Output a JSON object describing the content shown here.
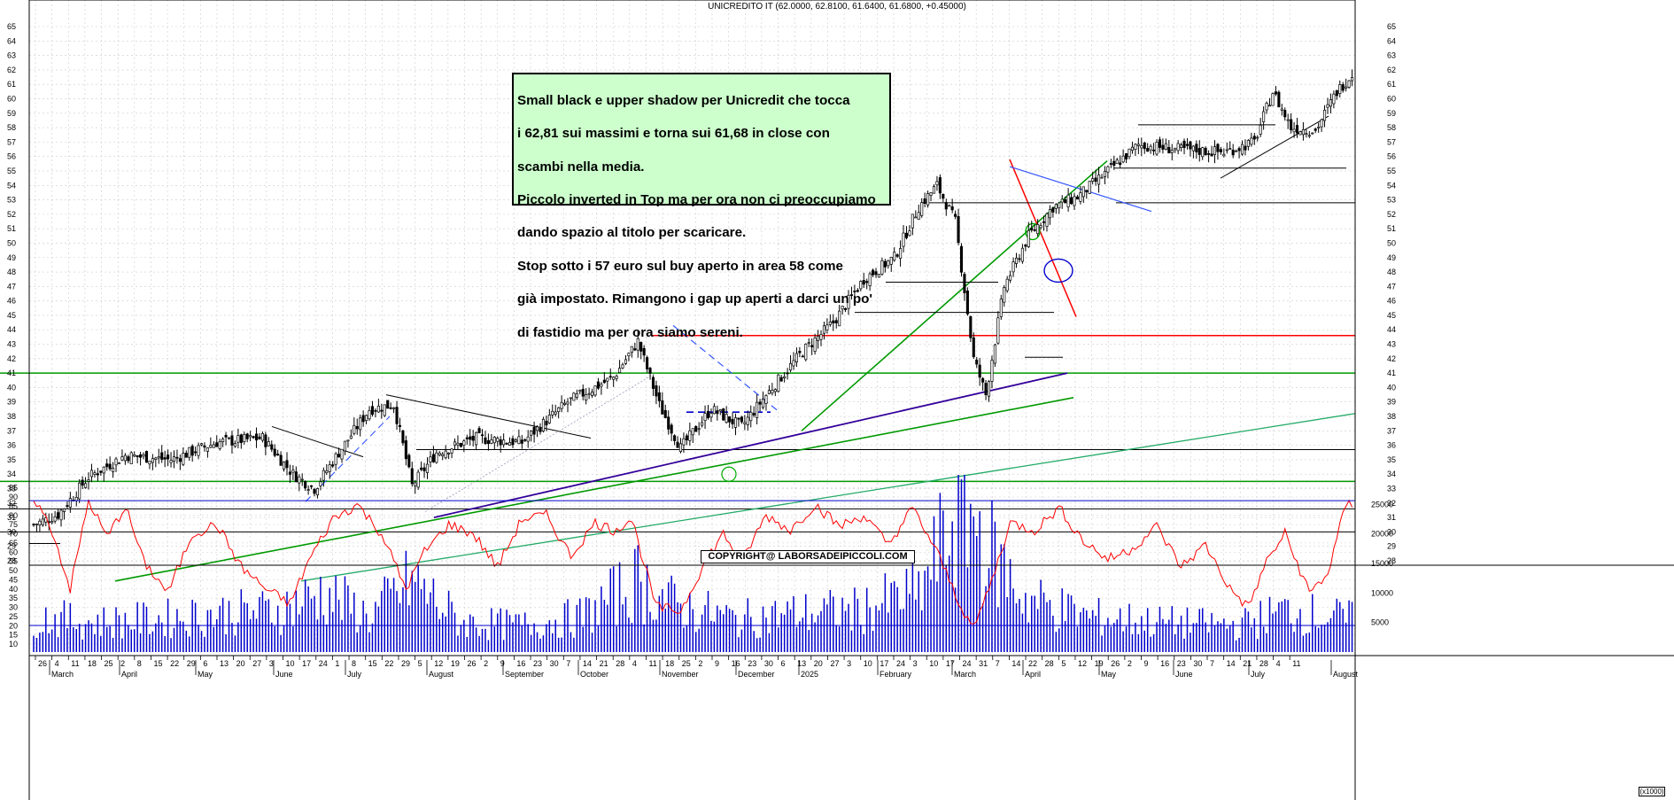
{
  "chart_data": {
    "type": "candlestick",
    "title": "UNICREDITO IT (62.0000, 62.8100, 61.6400, 61.6800, +0.45000)",
    "price_axis": {
      "ylim": [
        28,
        65
      ],
      "ticks": [
        28,
        29,
        30,
        31,
        32,
        33,
        34,
        35,
        36,
        37,
        38,
        39,
        40,
        41,
        42,
        43,
        44,
        45,
        46,
        47,
        48,
        49,
        50,
        51,
        52,
        53,
        54,
        55,
        56,
        57,
        58,
        59,
        60,
        61,
        62,
        63,
        64,
        65
      ]
    },
    "oscillator_axis": {
      "ylim": [
        10,
        95
      ],
      "ticks": [
        10,
        15,
        20,
        25,
        30,
        35,
        40,
        45,
        50,
        55,
        60,
        65,
        70,
        75,
        80,
        85,
        90,
        95
      ],
      "overbought_line": 88
    },
    "volume_axis": {
      "ylim": [
        0,
        30000
      ],
      "ticks": [
        5000,
        10000,
        15000,
        20000,
        25000
      ],
      "unit_label": "(x1000)"
    },
    "x_day_ticks": [
      "26",
      "4",
      "11",
      "18",
      "25",
      "2",
      "8",
      "15",
      "22",
      "29",
      "6",
      "13",
      "20",
      "27",
      "3",
      "10",
      "17",
      "24",
      "1",
      "8",
      "15",
      "22",
      "29",
      "5",
      "12",
      "19",
      "26",
      "2",
      "9",
      "16",
      "23",
      "30",
      "7",
      "14",
      "21",
      "28",
      "4",
      "11",
      "18",
      "25",
      "2",
      "9",
      "16",
      "23",
      "30",
      "6",
      "13",
      "20",
      "27",
      "3",
      "10",
      "17",
      "24",
      "3",
      "10",
      "17",
      "24",
      "31",
      "7",
      "14",
      "22",
      "28",
      "5",
      "12",
      "19",
      "26",
      "2",
      "9",
      "16",
      "23",
      "30",
      "7",
      "14",
      "21",
      "28",
      "4",
      "11"
    ],
    "x_month_labels": [
      "March",
      "April",
      "May",
      "June",
      "July",
      "August",
      "September",
      "October",
      "November",
      "December",
      "2025",
      "February",
      "March",
      "April",
      "May",
      "June",
      "July",
      "August"
    ],
    "close_anchors": [
      [
        0,
        30.5
      ],
      [
        8,
        31.2
      ],
      [
        18,
        33.8
      ],
      [
        30,
        35.3
      ],
      [
        45,
        35.0
      ],
      [
        60,
        36.2
      ],
      [
        75,
        36.5
      ],
      [
        85,
        34.0
      ],
      [
        92,
        33.0
      ],
      [
        100,
        35.5
      ],
      [
        110,
        38.5
      ],
      [
        118,
        38.8
      ],
      [
        124,
        33.2
      ],
      [
        132,
        35.5
      ],
      [
        145,
        36.5
      ],
      [
        160,
        36.2
      ],
      [
        175,
        39.0
      ],
      [
        190,
        40.7
      ],
      [
        198,
        43.2
      ],
      [
        205,
        38.8
      ],
      [
        212,
        35.8
      ],
      [
        222,
        38.5
      ],
      [
        232,
        37.3
      ],
      [
        242,
        40.0
      ],
      [
        252,
        42.5
      ],
      [
        262,
        44.5
      ],
      [
        272,
        47.5
      ],
      [
        282,
        49.0
      ],
      [
        290,
        52.5
      ],
      [
        296,
        54.0
      ],
      [
        302,
        51.5
      ],
      [
        308,
        42.0
      ],
      [
        312,
        39.5
      ],
      [
        318,
        47.0
      ],
      [
        326,
        50.5
      ],
      [
        334,
        52.5
      ],
      [
        342,
        53.2
      ],
      [
        352,
        55.0
      ],
      [
        362,
        56.8
      ],
      [
        375,
        56.5
      ],
      [
        390,
        56.3
      ],
      [
        400,
        57.0
      ],
      [
        406,
        60.5
      ],
      [
        412,
        58.0
      ],
      [
        420,
        57.8
      ],
      [
        427,
        60.5
      ],
      [
        432,
        61.7
      ]
    ],
    "volume_anchors": [
      [
        0,
        6000
      ],
      [
        20,
        5000
      ],
      [
        40,
        5500
      ],
      [
        60,
        6500
      ],
      [
        80,
        7000
      ],
      [
        95,
        10000
      ],
      [
        110,
        6000
      ],
      [
        124,
        12000
      ],
      [
        140,
        5000
      ],
      [
        160,
        4500
      ],
      [
        180,
        6000
      ],
      [
        198,
        12000
      ],
      [
        210,
        8000
      ],
      [
        230,
        5500
      ],
      [
        250,
        6500
      ],
      [
        270,
        7000
      ],
      [
        290,
        10000
      ],
      [
        305,
        26000
      ],
      [
        312,
        18000
      ],
      [
        325,
        9000
      ],
      [
        345,
        6000
      ],
      [
        370,
        5000
      ],
      [
        395,
        4500
      ],
      [
        410,
        7000
      ],
      [
        432,
        5500
      ]
    ],
    "oscillator_anchors": [
      [
        0,
        90
      ],
      [
        6,
        72
      ],
      [
        12,
        40
      ],
      [
        18,
        88
      ],
      [
        24,
        68
      ],
      [
        30,
        85
      ],
      [
        36,
        55
      ],
      [
        44,
        38
      ],
      [
        52,
        70
      ],
      [
        60,
        75
      ],
      [
        68,
        52
      ],
      [
        76,
        40
      ],
      [
        84,
        32
      ],
      [
        90,
        55
      ],
      [
        98,
        78
      ],
      [
        106,
        86
      ],
      [
        114,
        70
      ],
      [
        122,
        40
      ],
      [
        128,
        60
      ],
      [
        136,
        75
      ],
      [
        144,
        70
      ],
      [
        152,
        52
      ],
      [
        160,
        78
      ],
      [
        168,
        80
      ],
      [
        176,
        58
      ],
      [
        184,
        76
      ],
      [
        190,
        72
      ],
      [
        196,
        78
      ],
      [
        204,
        30
      ],
      [
        212,
        28
      ],
      [
        220,
        55
      ],
      [
        226,
        70
      ],
      [
        232,
        55
      ],
      [
        240,
        80
      ],
      [
        248,
        72
      ],
      [
        256,
        86
      ],
      [
        264,
        74
      ],
      [
        272,
        80
      ],
      [
        280,
        64
      ],
      [
        288,
        84
      ],
      [
        296,
        60
      ],
      [
        304,
        30
      ],
      [
        308,
        18
      ],
      [
        314,
        45
      ],
      [
        320,
        76
      ],
      [
        328,
        72
      ],
      [
        336,
        84
      ],
      [
        344,
        66
      ],
      [
        352,
        56
      ],
      [
        360,
        62
      ],
      [
        368,
        74
      ],
      [
        376,
        52
      ],
      [
        384,
        64
      ],
      [
        392,
        40
      ],
      [
        398,
        30
      ],
      [
        404,
        55
      ],
      [
        410,
        70
      ],
      [
        418,
        38
      ],
      [
        424,
        48
      ],
      [
        430,
        86
      ],
      [
        432,
        86
      ]
    ],
    "hlines": [
      {
        "y": 41.0,
        "color": "#009900",
        "x": [
          0,
          1530
        ]
      },
      {
        "y": 33.5,
        "color": "#009900",
        "x": [
          0,
          1530
        ]
      },
      {
        "y": 43.6,
        "color": "#ff0000",
        "x": [
          736,
          1530
        ]
      },
      {
        "y": 31.6,
        "color": "#000000",
        "x": [
          0,
          1530
        ]
      },
      {
        "y": 30.0,
        "color": "#000000",
        "x": [
          0,
          1530
        ]
      },
      {
        "y": 35.7,
        "color": "#000000",
        "x": [
          470,
          1530
        ]
      },
      {
        "y": 52.8,
        "color": "#000000",
        "x": [
          1260,
          1530
        ]
      },
      {
        "y": 55.2,
        "color": "#000000",
        "x": [
          1258,
          1520
        ]
      },
      {
        "y": 58.2,
        "color": "#000000",
        "x": [
          1285,
          1440
        ]
      },
      {
        "y": 38.3,
        "color": "#0000cc",
        "dashed": true,
        "x": [
          775,
          870
        ]
      }
    ]
  },
  "annotation": {
    "lines": [
      "Small black e upper shadow per Unicredit che tocca",
      "i 62,81 sui massimi e torna sui 61,68 in close con",
      "scambi nella media.",
      "Piccolo inverted in Top ma per ora non ci preoccupiamo",
      "dando spazio al titolo per scaricare.",
      "Stop sotto i 57 euro sul buy aperto in area 58 come",
      "già impostato. Rimangono i gap up aperti a darci un po'",
      "di fastidio ma per ora siamo sereni."
    ]
  },
  "copyright": "COPYRIGHT@ LABORSADEIPICCOLI.COM",
  "colors": {
    "candle": "#000000",
    "volume": "#0000cc",
    "oscillator": "#ff0000",
    "support": "#009900",
    "resistance": "#ff0000",
    "trend_purple": "#330099",
    "trend_blue": "#3355ff"
  }
}
